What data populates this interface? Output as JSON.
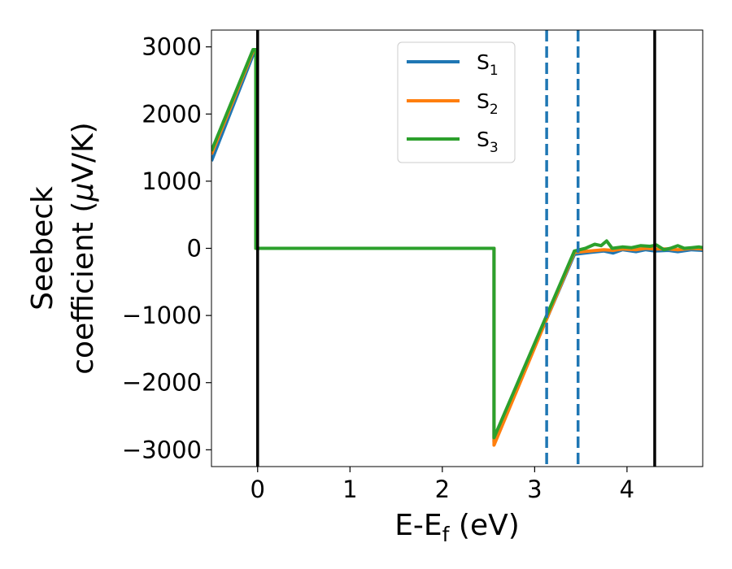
{
  "chart_data": {
    "type": "line",
    "xlabel": {
      "main": "E-E",
      "sub": "f",
      "unit": " (eV)"
    },
    "ylabel": {
      "line1": "Seebeck",
      "line2_prefix": "coefficient  (",
      "mu": "μ",
      "line2_suffix": "V/K)"
    },
    "xlim": [
      -0.5,
      4.82
    ],
    "ylim": [
      -3250,
      3250
    ],
    "xticks": [
      0,
      1,
      2,
      3,
      4
    ],
    "xtick_labels": [
      "0",
      "1",
      "2",
      "3",
      "4"
    ],
    "yticks": [
      3000,
      2000,
      1000,
      0,
      -1000,
      -2000,
      -3000
    ],
    "ytick_labels": [
      "3000",
      "2000",
      "1000",
      "0",
      "−1000",
      "−2000",
      "−3000"
    ],
    "grid": false,
    "legend_position": "top-center",
    "series": [
      {
        "name": "S",
        "sub": "1",
        "color": "#1f77b4",
        "points": [
          [
            -0.5,
            1300
          ],
          [
            -0.05,
            2880
          ],
          [
            -0.02,
            2880
          ],
          [
            -0.02,
            0
          ],
          [
            2.56,
            0
          ],
          [
            2.56,
            -2880
          ],
          [
            3.43,
            -90
          ],
          [
            3.6,
            -60
          ],
          [
            3.75,
            -40
          ],
          [
            3.85,
            -70
          ],
          [
            3.95,
            -20
          ],
          [
            4.1,
            -50
          ],
          [
            4.2,
            -20
          ],
          [
            4.3,
            -40
          ],
          [
            4.45,
            -30
          ],
          [
            4.55,
            -50
          ],
          [
            4.7,
            -20
          ],
          [
            4.82,
            -30
          ]
        ]
      },
      {
        "name": "S",
        "sub": "2",
        "color": "#ff7f0e",
        "points": [
          [
            -0.5,
            1400
          ],
          [
            -0.05,
            2930
          ],
          [
            -0.02,
            2930
          ],
          [
            -0.02,
            0
          ],
          [
            2.56,
            0
          ],
          [
            2.56,
            -2930
          ],
          [
            3.43,
            -60
          ],
          [
            3.6,
            -40
          ],
          [
            3.75,
            -20
          ],
          [
            3.85,
            -30
          ],
          [
            3.95,
            -10
          ],
          [
            4.1,
            -20
          ],
          [
            4.2,
            0
          ],
          [
            4.3,
            -10
          ],
          [
            4.45,
            -10
          ],
          [
            4.55,
            -20
          ],
          [
            4.7,
            0
          ],
          [
            4.82,
            -10
          ]
        ]
      },
      {
        "name": "S",
        "sub": "3",
        "color": "#2ca02c",
        "points": [
          [
            -0.5,
            1450
          ],
          [
            -0.05,
            2960
          ],
          [
            -0.02,
            2960
          ],
          [
            -0.02,
            0
          ],
          [
            2.56,
            0
          ],
          [
            2.56,
            -2820
          ],
          [
            3.43,
            -40
          ],
          [
            3.55,
            0
          ],
          [
            3.65,
            60
          ],
          [
            3.72,
            40
          ],
          [
            3.78,
            110
          ],
          [
            3.84,
            0
          ],
          [
            3.95,
            20
          ],
          [
            4.05,
            10
          ],
          [
            4.15,
            40
          ],
          [
            4.25,
            30
          ],
          [
            4.32,
            50
          ],
          [
            4.4,
            -20
          ],
          [
            4.47,
            0
          ],
          [
            4.55,
            40
          ],
          [
            4.62,
            0
          ],
          [
            4.7,
            10
          ],
          [
            4.78,
            20
          ],
          [
            4.82,
            10
          ]
        ]
      }
    ],
    "vertical_lines": [
      {
        "x": 0.0,
        "style": "solid",
        "color": "#000000"
      },
      {
        "x": 4.3,
        "style": "solid",
        "color": "#000000"
      },
      {
        "x": 3.13,
        "style": "dashed",
        "color": "#1f77b4"
      },
      {
        "x": 3.47,
        "style": "dashed",
        "color": "#1f77b4"
      }
    ]
  }
}
